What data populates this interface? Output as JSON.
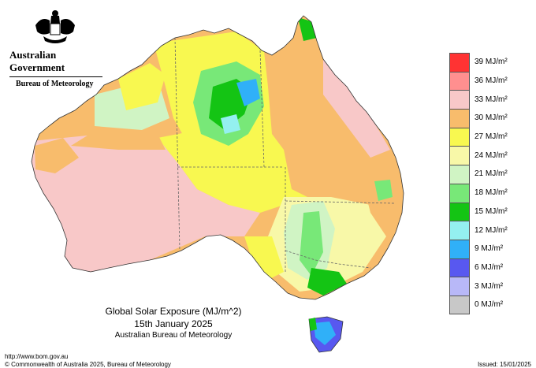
{
  "header": {
    "government": "Australian Government",
    "bureau": "Bureau of Meteorology"
  },
  "map": {
    "title": "Global Solar Exposure (MJ/m^2)",
    "date": "15th January 2025",
    "agency": "Australian Bureau of Meteorology"
  },
  "legend": {
    "items": [
      {
        "label": "39 MJ/m²",
        "color": "#ff3333"
      },
      {
        "label": "36 MJ/m²",
        "color": "#ff8f8f"
      },
      {
        "label": "33 MJ/m²",
        "color": "#f8c8c8"
      },
      {
        "label": "30 MJ/m²",
        "color": "#f8bc6c"
      },
      {
        "label": "27 MJ/m²",
        "color": "#f8f850"
      },
      {
        "label": "24 MJ/m²",
        "color": "#f8f8a8"
      },
      {
        "label": "21 MJ/m²",
        "color": "#d0f4c4"
      },
      {
        "label": "18 MJ/m²",
        "color": "#78e878"
      },
      {
        "label": "15 MJ/m²",
        "color": "#14c414"
      },
      {
        "label": "12 MJ/m²",
        "color": "#94f0f0"
      },
      {
        "label": "9 MJ/m²",
        "color": "#30b0f8"
      },
      {
        "label": "6 MJ/m²",
        "color": "#5858f0"
      },
      {
        "label": "3 MJ/m²",
        "color": "#b8b8f8"
      },
      {
        "label": "0 MJ/m²",
        "color": "#c8c8c8"
      }
    ]
  },
  "footer": {
    "url": "http://www.bom.gov.au",
    "copyright": "© Commonwealth of Australia 2025, Bureau of Meteorology",
    "issued": "Issued: 15/01/2025"
  }
}
